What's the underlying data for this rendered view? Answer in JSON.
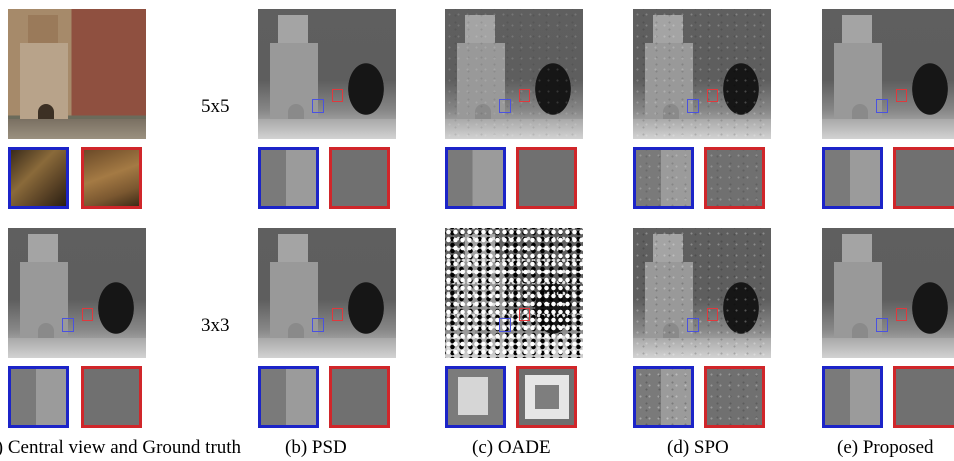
{
  "row_labels": {
    "row1": "5x5",
    "row2": "3x3"
  },
  "captions": {
    "a": "(a) Central view and Ground truth",
    "b": "(b) PSD",
    "c": "(c) OADE",
    "d": "(d) SPO",
    "e": "(e) Proposed"
  },
  "colors": {
    "blue_box": "#1c24c8",
    "red_box": "#d0262a"
  }
}
